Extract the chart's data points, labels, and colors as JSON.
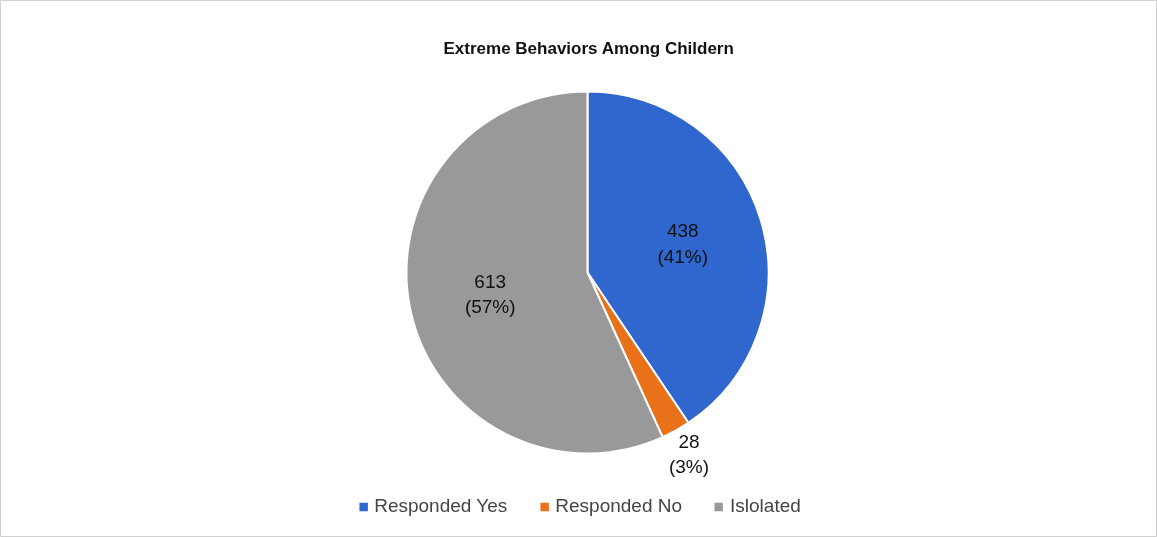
{
  "chart_data": {
    "type": "pie",
    "title": "Extreme Behaviors Among Childern",
    "categories": [
      "Responded Yes",
      "Responded No",
      "Islolated"
    ],
    "values": [
      438,
      28,
      613
    ],
    "colors": [
      "#2f67cf",
      "#e8711a",
      "#999999"
    ],
    "value_labels": [
      "438\n(41%)",
      "28\n(3%)",
      "613\n(57%)"
    ],
    "legend": "bottom"
  }
}
